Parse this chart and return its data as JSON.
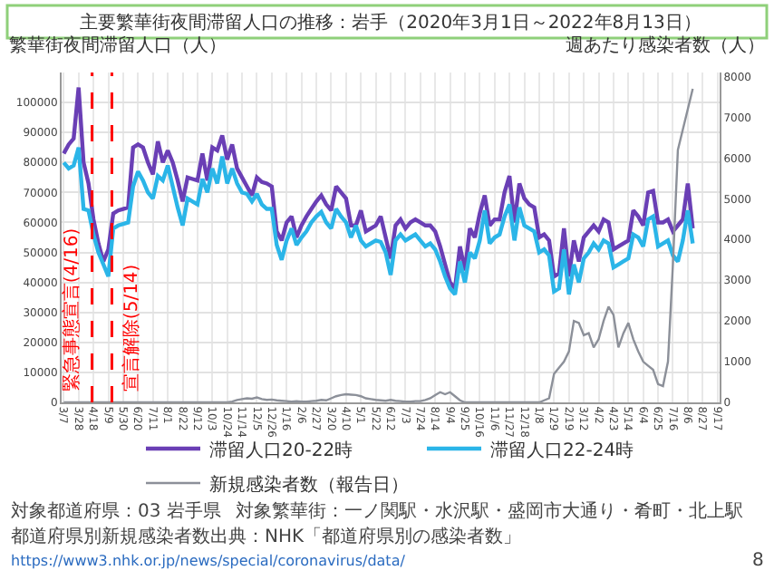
{
  "chart_data": {
    "type": "line",
    "title": "主要繁華街夜間滞留人口の推移：岩手（2020年3月1日～2022年8月13日）",
    "ylabel": "繁華街夜間滞留人口（人）",
    "y2label": "週あたり感染者数（人）",
    "x": [
      "2020-03-07",
      "2020-03-14",
      "2020-03-21",
      "2020-03-28",
      "2020-04-04",
      "2020-04-11",
      "2020-04-18",
      "2020-04-25",
      "2020-05-02",
      "2020-05-09",
      "2020-05-16",
      "2020-05-23",
      "2020-05-30",
      "2020-06-06",
      "2020-06-13",
      "2020-06-20",
      "2020-06-27",
      "2020-07-04",
      "2020-07-11",
      "2020-07-18",
      "2020-07-25",
      "2020-08-01",
      "2020-08-08",
      "2020-08-15",
      "2020-08-22",
      "2020-08-29",
      "2020-09-05",
      "2020-09-12",
      "2020-09-19",
      "2020-09-26",
      "2020-10-03",
      "2020-10-10",
      "2020-10-17",
      "2020-10-24",
      "2020-10-31",
      "2020-11-07",
      "2020-11-14",
      "2020-11-21",
      "2020-11-28",
      "2020-12-05",
      "2020-12-12",
      "2020-12-19",
      "2020-12-26",
      "2021-01-02",
      "2021-01-09",
      "2021-01-16",
      "2021-01-23",
      "2021-01-30",
      "2021-02-06",
      "2021-02-13",
      "2021-02-20",
      "2021-02-27",
      "2021-03-06",
      "2021-03-13",
      "2021-03-20",
      "2021-03-27",
      "2021-04-03",
      "2021-04-10",
      "2021-04-17",
      "2021-04-24",
      "2021-05-01",
      "2021-05-08",
      "2021-05-15",
      "2021-05-22",
      "2021-05-29",
      "2021-06-05",
      "2021-06-12",
      "2021-06-19",
      "2021-06-26",
      "2021-07-03",
      "2021-07-10",
      "2021-07-17",
      "2021-07-24",
      "2021-07-31",
      "2021-08-07",
      "2021-08-14",
      "2021-08-21",
      "2021-08-28",
      "2021-09-04",
      "2021-09-11",
      "2021-09-18",
      "2021-09-25",
      "2021-10-02",
      "2021-10-09",
      "2021-10-16",
      "2021-10-23",
      "2021-10-30",
      "2021-11-06",
      "2021-11-13",
      "2021-11-20",
      "2021-11-27",
      "2021-12-04",
      "2021-12-11",
      "2021-12-18",
      "2021-12-25",
      "2022-01-01",
      "2022-01-08",
      "2022-01-15",
      "2022-01-22",
      "2022-01-29",
      "2022-02-05",
      "2022-02-12",
      "2022-02-19",
      "2022-02-26",
      "2022-03-05",
      "2022-03-12",
      "2022-03-19",
      "2022-03-26",
      "2022-04-02",
      "2022-04-09",
      "2022-04-16",
      "2022-04-23",
      "2022-04-30",
      "2022-05-07",
      "2022-05-14",
      "2022-05-21",
      "2022-05-28",
      "2022-06-04",
      "2022-06-11",
      "2022-06-18",
      "2022-06-25",
      "2022-07-02",
      "2022-07-09",
      "2022-07-16",
      "2022-07-23",
      "2022-07-30",
      "2022-08-06",
      "2022-08-13"
    ],
    "xlim": [
      "2020-03-04",
      "2022-09-20"
    ],
    "xticks": [
      {
        "value": "2020-03-07",
        "label": "3/7"
      },
      {
        "value": "2020-03-28",
        "label": "3/28"
      },
      {
        "value": "2020-04-18",
        "label": "4/18"
      },
      {
        "value": "2020-05-09",
        "label": "5/9"
      },
      {
        "value": "2020-05-30",
        "label": "5/30"
      },
      {
        "value": "2020-06-20",
        "label": "6/20"
      },
      {
        "value": "2020-07-11",
        "label": "7/11"
      },
      {
        "value": "2020-08-01",
        "label": "8/1"
      },
      {
        "value": "2020-08-22",
        "label": "8/22"
      },
      {
        "value": "2020-09-12",
        "label": "9/12"
      },
      {
        "value": "2020-10-03",
        "label": "10/3"
      },
      {
        "value": "2020-10-24",
        "label": "10/24"
      },
      {
        "value": "2020-11-14",
        "label": "11/14"
      },
      {
        "value": "2020-12-05",
        "label": "12/5"
      },
      {
        "value": "2020-12-26",
        "label": "12/26"
      },
      {
        "value": "2021-01-16",
        "label": "1/16"
      },
      {
        "value": "2021-02-06",
        "label": "2/6"
      },
      {
        "value": "2021-02-27",
        "label": "2/27"
      },
      {
        "value": "2021-03-20",
        "label": "3/20"
      },
      {
        "value": "2021-04-10",
        "label": "4/10"
      },
      {
        "value": "2021-05-01",
        "label": "5/1"
      },
      {
        "value": "2021-05-22",
        "label": "5/22"
      },
      {
        "value": "2021-06-12",
        "label": "6/12"
      },
      {
        "value": "2021-07-03",
        "label": "7/3"
      },
      {
        "value": "2021-07-24",
        "label": "7/24"
      },
      {
        "value": "2021-08-14",
        "label": "8/14"
      },
      {
        "value": "2021-09-04",
        "label": "9/4"
      },
      {
        "value": "2021-09-25",
        "label": "9/25"
      },
      {
        "value": "2021-10-16",
        "label": "10/16"
      },
      {
        "value": "2021-11-06",
        "label": "11/6"
      },
      {
        "value": "2021-11-27",
        "label": "11/27"
      },
      {
        "value": "2021-12-18",
        "label": "12/18"
      },
      {
        "value": "2022-01-08",
        "label": "1/8"
      },
      {
        "value": "2022-01-29",
        "label": "1/29"
      },
      {
        "value": "2022-02-19",
        "label": "2/19"
      },
      {
        "value": "2022-03-12",
        "label": "3/12"
      },
      {
        "value": "2022-04-02",
        "label": "4/2"
      },
      {
        "value": "2022-04-23",
        "label": "4/23"
      },
      {
        "value": "2022-05-14",
        "label": "5/14"
      },
      {
        "value": "2022-06-04",
        "label": "6/4"
      },
      {
        "value": "2022-06-25",
        "label": "6/25"
      },
      {
        "value": "2022-07-16",
        "label": "7/16"
      },
      {
        "value": "2022-08-06",
        "label": "8/6"
      },
      {
        "value": "2022-08-27",
        "label": "8/27"
      },
      {
        "value": "2022-09-17",
        "label": "9/17"
      }
    ],
    "ylim": [
      0,
      110000
    ],
    "yticks": [
      0,
      10000,
      20000,
      30000,
      40000,
      50000,
      60000,
      70000,
      80000,
      90000,
      100000
    ],
    "y2lim": [
      0,
      8100
    ],
    "y2ticks": [
      0,
      1000,
      2000,
      3000,
      4000,
      5000,
      6000,
      7000,
      8000
    ],
    "grid": true,
    "legend": "bottom",
    "series": [
      {
        "name": "滞留人口20-22時",
        "color": "#6a3fb5",
        "values": [
          83000,
          86000,
          88000,
          105000,
          80000,
          73000,
          61000,
          53000,
          47000,
          51000,
          63000,
          64000,
          64500,
          65000,
          85000,
          86000,
          85000,
          80000,
          76000,
          87000,
          80000,
          84000,
          80000,
          74000,
          67000,
          75000,
          74500,
          74000,
          83000,
          74000,
          85000,
          84000,
          89000,
          81000,
          86000,
          78000,
          75000,
          72000,
          69000,
          75000,
          73500,
          73000,
          72000,
          57000,
          54000,
          60000,
          62000,
          55000,
          59000,
          62000,
          64500,
          67000,
          69000,
          66000,
          64000,
          72000,
          70000,
          68000,
          59000,
          59000,
          64000,
          57000,
          58000,
          59000,
          62000,
          55000,
          48000,
          59000,
          61000,
          58000,
          60000,
          61000,
          60000,
          59000,
          59000,
          57000,
          52000,
          46000,
          40000,
          38000,
          52000,
          44000,
          58000,
          55000,
          63000,
          69000,
          59000,
          61000,
          61000,
          70000,
          75500,
          60000,
          73000,
          68000,
          66000,
          65000,
          55000,
          56000,
          54000,
          42000,
          43000,
          58000,
          42000,
          54000,
          47000,
          55000,
          57000,
          59000,
          57000,
          61000,
          60000,
          51000,
          52000,
          53000,
          54000,
          64000,
          62000,
          59000,
          70000,
          70500,
          60000,
          60000,
          61000,
          57000,
          59000,
          61000,
          73000,
          58000
        ]
      },
      {
        "name": "滞留人口22-24時",
        "color": "#2bb5e8",
        "values": [
          80000,
          78000,
          79000,
          85000,
          64500,
          64000,
          56000,
          50000,
          46000,
          42000,
          58000,
          59000,
          59500,
          60000,
          72000,
          77000,
          74000,
          70000,
          68000,
          75500,
          74000,
          79000,
          72000,
          65000,
          59000,
          68000,
          67000,
          66000,
          74500,
          70000,
          78000,
          73000,
          82000,
          73000,
          78000,
          73000,
          70000,
          69500,
          67000,
          69500,
          66000,
          64500,
          64500,
          52500,
          47500,
          54000,
          58000,
          52500,
          55000,
          57000,
          60000,
          62000,
          63500,
          60000,
          58000,
          64500,
          62000,
          60000,
          55000,
          59000,
          54000,
          52000,
          53000,
          54000,
          53500,
          50000,
          42500,
          54000,
          56000,
          54000,
          55000,
          56000,
          54000,
          52000,
          53000,
          51000,
          47000,
          42000,
          38000,
          36000,
          47000,
          40000,
          50000,
          48000,
          54000,
          64000,
          53000,
          55000,
          56000,
          62000,
          66000,
          54000,
          65000,
          59000,
          58000,
          57000,
          50000,
          51000,
          49000,
          37000,
          38000,
          51000,
          36000,
          46000,
          40000,
          48000,
          50000,
          53000,
          51000,
          54000,
          53000,
          45000,
          46000,
          47000,
          48000,
          56000,
          55000,
          52000,
          61000,
          62000,
          52000,
          53000,
          54000,
          49000,
          47000,
          54000,
          64000,
          53000
        ]
      },
      {
        "name": "新規感染者数（報告日）",
        "color": "#8c9099",
        "axis": "y2",
        "values": [
          0,
          0,
          0,
          0,
          0,
          0,
          0,
          0,
          0,
          0,
          0,
          0,
          0,
          0,
          0,
          0,
          0,
          0,
          0,
          0,
          0,
          0,
          0,
          0,
          0,
          0,
          0,
          0,
          0,
          0,
          0,
          0,
          0,
          0,
          20,
          60,
          80,
          100,
          90,
          120,
          80,
          60,
          70,
          50,
          40,
          30,
          20,
          30,
          20,
          20,
          30,
          40,
          60,
          50,
          100,
          150,
          180,
          200,
          190,
          180,
          150,
          100,
          80,
          60,
          50,
          40,
          60,
          40,
          30,
          20,
          20,
          30,
          30,
          60,
          100,
          180,
          250,
          200,
          250,
          150,
          50,
          0,
          0,
          0,
          0,
          0,
          0,
          0,
          0,
          0,
          0,
          0,
          0,
          0,
          0,
          0,
          0,
          50,
          100,
          700,
          850,
          1000,
          1250,
          2000,
          1950,
          1650,
          1700,
          1350,
          1550,
          2000,
          2350,
          2150,
          1350,
          1700,
          1950,
          1550,
          1250,
          1000,
          900,
          800,
          450,
          400,
          1000,
          3400,
          6200,
          6700,
          7200,
          7700
        ]
      }
    ],
    "ref_lines": [
      {
        "axis": "x",
        "value": "2020-04-16",
        "label": "緊急事態宣言(4/16)",
        "color": "#ff0000",
        "line_style": "dashed"
      },
      {
        "axis": "x",
        "value": "2020-05-14",
        "label": "宣言解除(5/14)",
        "color": "#ff0000",
        "line_style": "dashed"
      }
    ],
    "annotations": [
      "対象都道府県：03 岩手県",
      "対象繁華街：一ノ関駅・水沢駅・盛岡市大通り・肴町・北上駅",
      "都道府県別新規感染者数出典：NHK「都道府県別の感染者数」",
      "https://www3.nhk.or.jp/news/special/coronavirus/data/",
      "8"
    ]
  }
}
